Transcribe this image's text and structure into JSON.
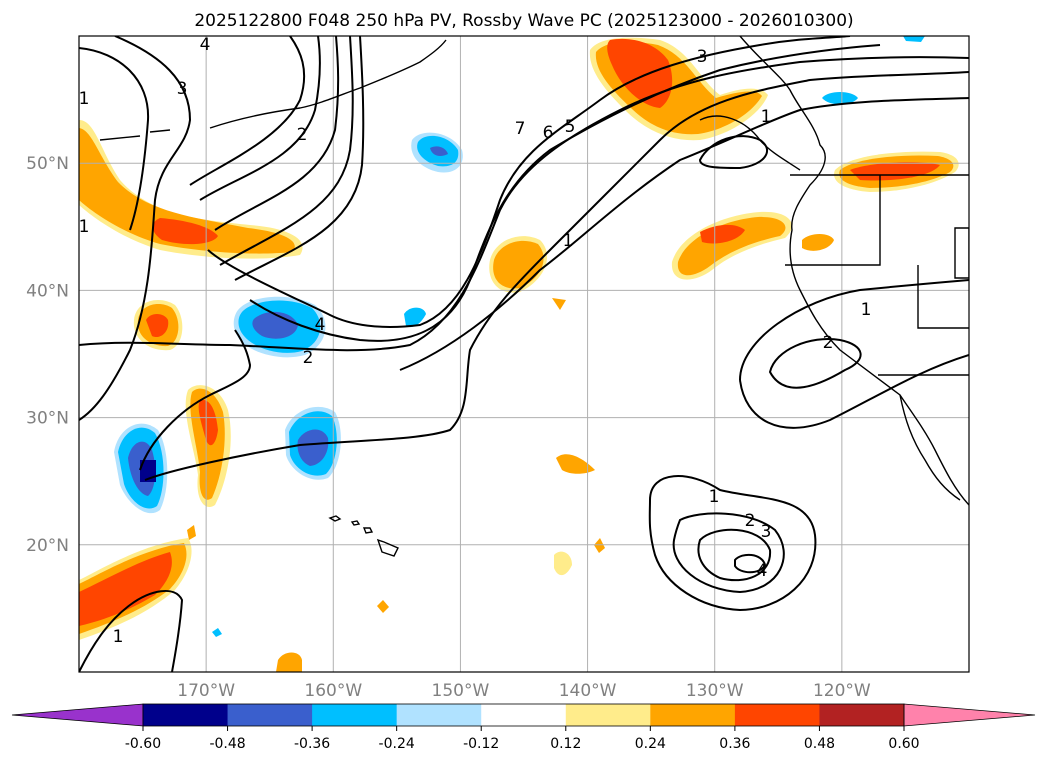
{
  "title": "2025122800 F048 250 hPa PV, Rossby Wave PC (2025123000 - 2026010300)",
  "map": {
    "lon_range": [
      -180,
      -110
    ],
    "lat_range": [
      10,
      60
    ],
    "lat_ticks": [
      {
        "value": 20,
        "label": "20°N"
      },
      {
        "value": 30,
        "label": "30°N"
      },
      {
        "value": 40,
        "label": "40°N"
      },
      {
        "value": 50,
        "label": "50°N"
      }
    ],
    "lon_ticks": [
      {
        "value": -170,
        "label": "170°W"
      },
      {
        "value": -160,
        "label": "160°W"
      },
      {
        "value": -150,
        "label": "150°W"
      },
      {
        "value": -140,
        "label": "140°W"
      },
      {
        "value": -130,
        "label": "130°W"
      },
      {
        "value": -120,
        "label": "120°W"
      }
    ]
  },
  "colorbar": {
    "levels": [
      "-0.60",
      "-0.48",
      "-0.36",
      "-0.24",
      "-0.12",
      "0.12",
      "0.24",
      "0.36",
      "0.48",
      "0.60"
    ],
    "colors": [
      "#9932cc",
      "#00008b",
      "#3a5fcd",
      "#00bfff",
      "#b0e2ff",
      "#ffffff",
      "#ffec8b",
      "#ffa500",
      "#ff4500",
      "#b22222",
      "#ff82ab"
    ]
  },
  "contour_labels": [
    "4",
    "3",
    "2",
    "1",
    "1",
    "7",
    "6",
    "5",
    "3",
    "1",
    "4",
    "2",
    "1",
    "1",
    "2",
    "1",
    "2",
    "3",
    "4",
    "1"
  ]
}
